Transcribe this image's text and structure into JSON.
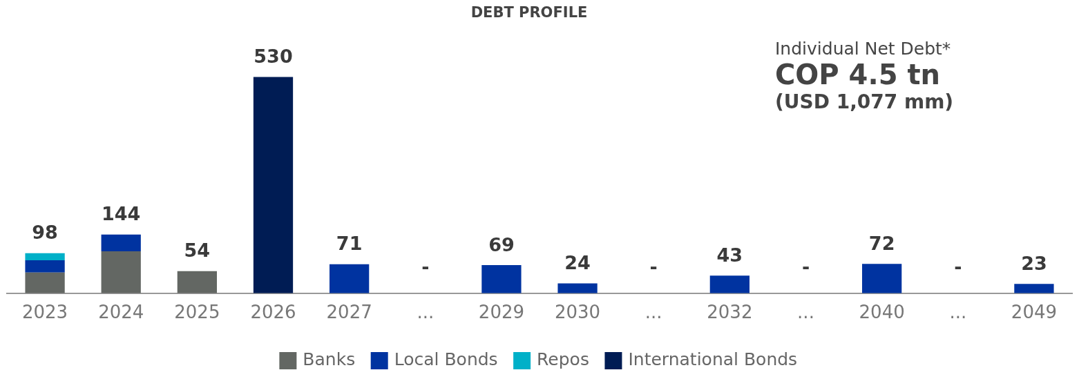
{
  "chart_data": {
    "type": "bar",
    "title": "DEBT PROFILE",
    "categories": [
      "2023",
      "2024",
      "2025",
      "2026",
      "2027",
      "...",
      "2029",
      "2030",
      "...",
      "2032",
      "...",
      "2040",
      "...",
      "2049"
    ],
    "stacked": true,
    "series": [
      {
        "name": "Banks",
        "color": "#636763",
        "values": [
          51,
          103,
          54,
          null,
          null,
          null,
          null,
          null,
          null,
          null,
          null,
          null,
          null,
          null
        ],
        "value_labels": [
          null,
          null,
          "54",
          null,
          null,
          null,
          null,
          null,
          null,
          null,
          null,
          null,
          null,
          null
        ]
      },
      {
        "name": "Local Bonds",
        "color": "#0033a0",
        "values": [
          30,
          41,
          null,
          null,
          71,
          null,
          69,
          24,
          null,
          43,
          null,
          72,
          null,
          23
        ],
        "value_labels": [
          null,
          null,
          null,
          null,
          "71",
          null,
          "69",
          "24",
          null,
          "43",
          null,
          "72",
          null,
          "23"
        ]
      },
      {
        "name": "Repos",
        "color": "#00b0c8",
        "values": [
          17,
          null,
          null,
          null,
          null,
          null,
          null,
          null,
          null,
          null,
          null,
          null,
          null,
          null
        ]
      },
      {
        "name": "International Bonds",
        "color": "#001c54",
        "values": [
          null,
          null,
          null,
          530,
          null,
          null,
          null,
          null,
          null,
          null,
          null,
          null,
          null,
          null
        ],
        "value_labels": [
          null,
          null,
          null,
          "530",
          null,
          null,
          null,
          null,
          null,
          null,
          null,
          null,
          null,
          null
        ]
      }
    ],
    "totals": [
      "98",
      "144",
      null,
      null,
      null,
      "-",
      null,
      null,
      "-",
      null,
      "-",
      null,
      "-",
      null
    ],
    "annotations": [
      "Individual Net Debt*",
      "COP 4.5 tn",
      "(USD 1,077 mm)"
    ],
    "legend": "bottom",
    "grid": false
  }
}
